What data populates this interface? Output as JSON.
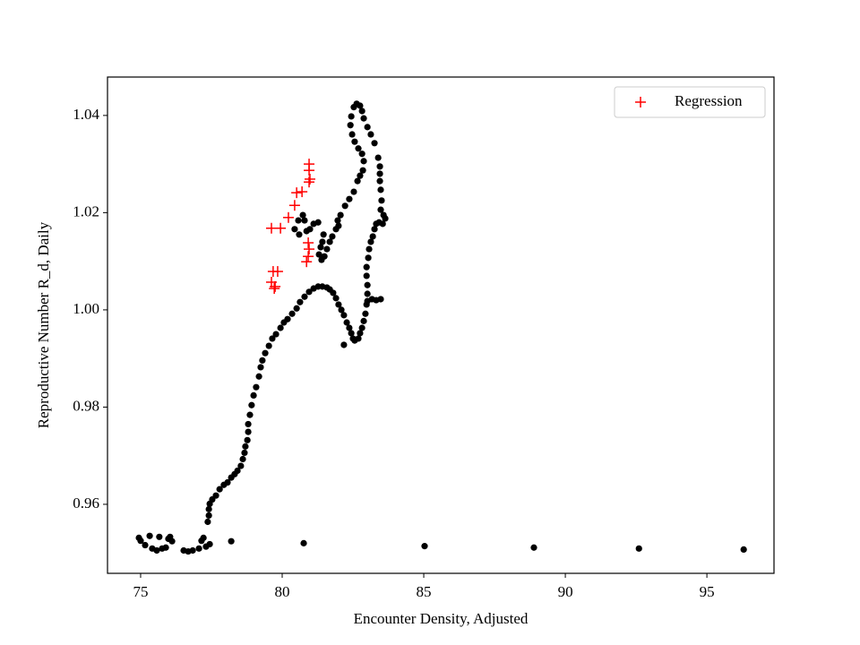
{
  "chart_data": {
    "type": "scatter",
    "xlabel": "Encounter Density, Adjusted",
    "ylabel": "Reproductive Number R_d, Daily",
    "xlim": [
      73.83,
      97.37
    ],
    "ylim": [
      0.9458,
      1.0479
    ],
    "xticks": [
      75,
      80,
      85,
      90,
      95
    ],
    "yticks": [
      0.96,
      0.98,
      {
        "value": 1,
        "label": "1.00"
      },
      1.02,
      1.04
    ],
    "grid": false,
    "legend": "upper right",
    "series": [
      {
        "color": "#000000",
        "marker": "o",
        "x": [
          74.94,
          75.0,
          75.16,
          75.32,
          75.41,
          75.57,
          75.66,
          75.76,
          75.89,
          75.98,
          76.04,
          76.11,
          76.52,
          76.68,
          76.84,
          77.06,
          77.15,
          77.22,
          77.31,
          77.44,
          78.2,
          80.76,
          85.03,
          88.89,
          92.6,
          96.3,
          77.37,
          77.41,
          77.41,
          77.44,
          77.53,
          77.66,
          77.79,
          77.94,
          78.07,
          78.2,
          78.32,
          78.42,
          78.54,
          78.61,
          78.67,
          78.7,
          78.77,
          78.8,
          78.8,
          78.86,
          78.92,
          78.99,
          79.08,
          79.18,
          79.24,
          79.3,
          79.4,
          79.53,
          79.65,
          79.78,
          79.94,
          80.06,
          80.19,
          80.35,
          80.51,
          80.63,
          80.79,
          80.95,
          81.11,
          81.27,
          81.42,
          81.58,
          81.68,
          81.8,
          81.9,
          81.99,
          82.09,
          82.18,
          82.28,
          82.37,
          82.44,
          82.5,
          82.56,
          82.69,
          82.75,
          82.82,
          82.88,
          82.94,
          82.98,
          83.01,
          83.01,
          82.98,
          82.98,
          83.04,
          83.07,
          83.13,
          83.2,
          83.26,
          83.32,
          83.42,
          83.55,
          83.64,
          83.58,
          83.48,
          83.51,
          83.48,
          83.45,
          83.45,
          83.45,
          83.39,
          83.26,
          83.13,
          83.01,
          82.88,
          82.82,
          82.75,
          82.63,
          82.53,
          82.44,
          82.41,
          82.47,
          82.56,
          82.69,
          82.82,
          82.88,
          82.85,
          82.75,
          82.66,
          82.53,
          82.37,
          82.22,
          82.06,
          81.96,
          81.99,
          81.9,
          81.77,
          81.68,
          81.58,
          81.49,
          81.39,
          81.3,
          81.36,
          81.42,
          81.46,
          81.27,
          81.11,
          80.98,
          80.86,
          80.79,
          80.73,
          80.57,
          80.44,
          80.6,
          83.01,
          83.17,
          83.32,
          83.48,
          82.18
        ],
        "values": [
          0.9531,
          0.9525,
          0.9516,
          0.9535,
          0.9509,
          0.9505,
          0.9533,
          0.9509,
          0.9511,
          0.9529,
          0.9533,
          0.9524,
          0.9505,
          0.9503,
          0.9505,
          0.9509,
          0.9525,
          0.9531,
          0.9513,
          0.9518,
          0.9524,
          0.952,
          0.9514,
          0.9511,
          0.9509,
          0.9507,
          0.9564,
          0.9577,
          0.959,
          0.9601,
          0.961,
          0.9618,
          0.9631,
          0.964,
          0.9645,
          0.9655,
          0.9662,
          0.9669,
          0.9679,
          0.9693,
          0.9706,
          0.9719,
          0.9732,
          0.9749,
          0.9765,
          0.9784,
          0.9804,
          0.9824,
          0.9841,
          0.9863,
          0.9882,
          0.9896,
          0.9911,
          0.9926,
          0.9941,
          0.995,
          0.9963,
          0.9974,
          0.9981,
          0.9992,
          1.0003,
          1.0016,
          1.0027,
          1.0037,
          1.0044,
          1.0048,
          1.0048,
          1.0046,
          1.0042,
          1.0035,
          1.0024,
          1.0011,
          1.0,
          0.9989,
          0.9974,
          0.9963,
          0.9952,
          0.9941,
          0.9937,
          0.9941,
          0.9952,
          0.9963,
          0.9977,
          0.9992,
          1.0011,
          1.0033,
          1.0051,
          1.007,
          1.0088,
          1.0107,
          1.0125,
          1.014,
          1.0151,
          1.0166,
          1.0177,
          1.018,
          1.0177,
          1.0188,
          1.0195,
          1.0206,
          1.0225,
          1.0247,
          1.0265,
          1.028,
          1.0295,
          1.0313,
          1.0343,
          1.0361,
          1.0376,
          1.0394,
          1.0409,
          1.042,
          1.0424,
          1.0417,
          1.0398,
          1.038,
          1.0361,
          1.0346,
          1.0332,
          1.0321,
          1.0306,
          1.0287,
          1.0276,
          1.0265,
          1.0243,
          1.0228,
          1.0214,
          1.0195,
          1.0184,
          1.0173,
          1.0166,
          1.0151,
          1.014,
          1.0125,
          1.011,
          1.0103,
          1.0114,
          1.0129,
          1.014,
          1.0155,
          1.018,
          1.0177,
          1.0166,
          1.0162,
          1.0184,
          1.0195,
          1.0184,
          1.0166,
          1.0155,
          1.0018,
          1.0022,
          1.002,
          1.0022,
          0.9928
        ]
      },
      {
        "name": "Regression",
        "color": "#ff0000",
        "marker": "+",
        "x": [
          79.62,
          79.94,
          80.22,
          80.44,
          80.51,
          80.7,
          80.95,
          80.95,
          80.98,
          80.95,
          80.92,
          80.95,
          80.92,
          80.86,
          79.68,
          79.84,
          79.62,
          79.75,
          79.72
        ],
        "values": [
          1.0168,
          1.0168,
          1.019,
          1.0215,
          1.0241,
          1.0243,
          1.03,
          1.0287,
          1.0269,
          1.0263,
          1.0138,
          1.0125,
          1.011,
          1.0099,
          1.0079,
          1.0079,
          1.0057,
          1.0048,
          1.0044
        ]
      }
    ]
  }
}
